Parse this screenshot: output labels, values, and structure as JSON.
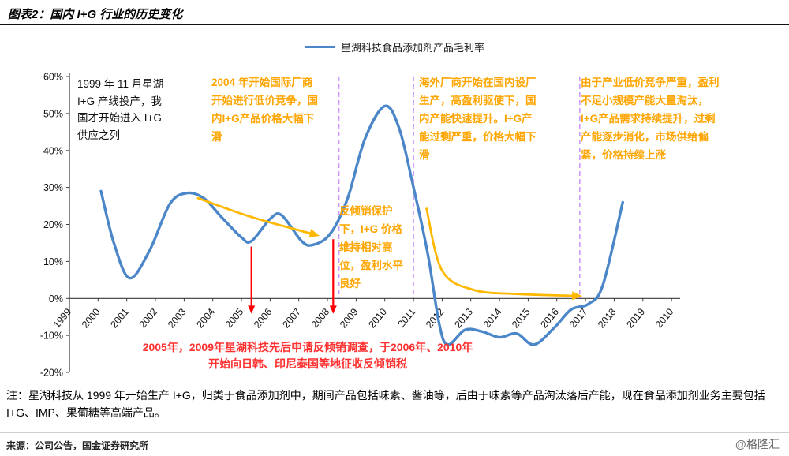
{
  "palette": {
    "orange_text": "#FFA500",
    "red_text": "#FF3030",
    "blue_line": "#4A86C8",
    "arrow_orange": "#FFB800",
    "arrow_red": "#FF0000",
    "dashed_purple": "#CC99FF"
  },
  "header": {
    "title": "图表2：国内 I+G 行业的历史变化"
  },
  "legend": {
    "label": "星湖科技食品添加剂产品毛利率"
  },
  "annotations": {
    "start_1999": "1999 年 11 月星湖 I+G 产线投产，我国才开始进入 I+G 供应之列",
    "intl_competition_2004": "2004 年开始国际厂商开始进行低价竞争，国内I+G产品价格大幅下滑",
    "antidumping_protection": "反倾销保护下，I+G 价格维持相对高位，盈利水平良好",
    "overseas_factories": "海外厂商开始在国内设厂生产，高盈利驱使下，国内产能快速提升。I+G产能过剩严重，价格大幅下滑",
    "supply_tightening": "由于产业低价竞争严重，盈利不足小规模产能大量淘汰，I+G产品需求持续提升，过剩产能逐步消化，市场供给偏紧，价格持续上涨",
    "antidumping_tax": "2005年，2009年星湖科技先后申请反倾销调查，于2006年、2010年开始向日韩、印尼泰国等地征收反倾销税"
  },
  "note": "注：星湖科技从 1999 年开始生产 I+G，归类于食品添加剂中，期间产品包括味素、酱油等，后由于味素等产品淘汰落后产能，现在食品添加剂业务主要包括 I+G、IMP、果葡糖等高端产品。",
  "source": "来源：公司公告，国金证券研究所",
  "watermark": "@格隆汇",
  "chart_data": {
    "type": "line",
    "title": "星湖科技食品添加剂产品毛利率",
    "xlabel": "",
    "ylabel": "",
    "grid": false,
    "legend_position": "top-center",
    "xlim": [
      1999,
      2020.3
    ],
    "ylim": [
      -20,
      60
    ],
    "x_tick_labels": [
      "1999",
      "2000",
      "2001",
      "2002",
      "2003",
      "2004",
      "2005",
      "2006",
      "2007",
      "2008",
      "2009",
      "2010",
      "2011",
      "2012",
      "2013",
      "2014",
      "2015",
      "2016",
      "2017",
      "2018",
      "2019",
      "2010"
    ],
    "y_tick_values": [
      60,
      50,
      40,
      30,
      20,
      10,
      0,
      -10,
      -20
    ],
    "y_tick_labels": [
      "60%",
      "50%",
      "40%",
      "30%",
      "20%",
      "10%",
      "0%",
      "-10%",
      "-20%"
    ],
    "series": [
      {
        "name": "星湖科技食品添加剂产品毛利率",
        "color": "#4A86C8",
        "points": [
          [
            2000.1,
            29
          ],
          [
            2000.55,
            15
          ],
          [
            2001.1,
            5.5
          ],
          [
            2001.8,
            13
          ],
          [
            2002.5,
            25.5
          ],
          [
            2003.1,
            28.5
          ],
          [
            2003.7,
            27
          ],
          [
            2004.3,
            22
          ],
          [
            2005.0,
            16.5
          ],
          [
            2005.35,
            15.5
          ],
          [
            2006.0,
            21.5
          ],
          [
            2006.4,
            22.5
          ],
          [
            2007.1,
            15.5
          ],
          [
            2007.5,
            14.5
          ],
          [
            2008.1,
            17.5
          ],
          [
            2008.7,
            27
          ],
          [
            2009.3,
            43
          ],
          [
            2010.0,
            52
          ],
          [
            2010.5,
            46
          ],
          [
            2011.0,
            30
          ],
          [
            2011.5,
            12
          ],
          [
            2011.9,
            -7
          ],
          [
            2012.2,
            -12.5
          ],
          [
            2012.8,
            -8.5
          ],
          [
            2013.4,
            -9
          ],
          [
            2014.0,
            -10.5
          ],
          [
            2014.6,
            -9.5
          ],
          [
            2015.2,
            -12.5
          ],
          [
            2015.9,
            -8
          ],
          [
            2016.5,
            -3
          ],
          [
            2017.1,
            -1.5
          ],
          [
            2017.6,
            3.5
          ],
          [
            2018.3,
            26
          ]
        ]
      }
    ],
    "dashed_guides": {
      "color": "#CC99FF",
      "x_years": [
        2008.4,
        2011.0,
        2016.8
      ]
    },
    "arrows": [
      {
        "name": "antidumping-arrow-2005",
        "color": "#FF0000",
        "width": 2.2,
        "head": 9,
        "points": [
          [
            2005.35,
            14
          ],
          [
            2005.35,
            -3
          ]
        ]
      },
      {
        "name": "antidumping-arrow-2008",
        "color": "#FF0000",
        "width": 2.2,
        "head": 9,
        "points": [
          [
            2008.2,
            16
          ],
          [
            2008.2,
            -3
          ]
        ]
      },
      {
        "name": "price-decline-arrow-2004",
        "color": "#FFB800",
        "width": 2.8,
        "head": 11,
        "points": [
          [
            2003.45,
            27.2
          ],
          [
            2005.35,
            22
          ],
          [
            2007.55,
            17.3
          ]
        ]
      },
      {
        "name": "price-decline-arrow-2011",
        "color": "#FFB800",
        "width": 2.8,
        "head": 11,
        "points": [
          [
            2011.45,
            24.5
          ],
          [
            2012.0,
            7.5
          ],
          [
            2013.1,
            2.3
          ],
          [
            2014.6,
            1.2
          ],
          [
            2016.7,
            0.7
          ]
        ]
      }
    ]
  }
}
